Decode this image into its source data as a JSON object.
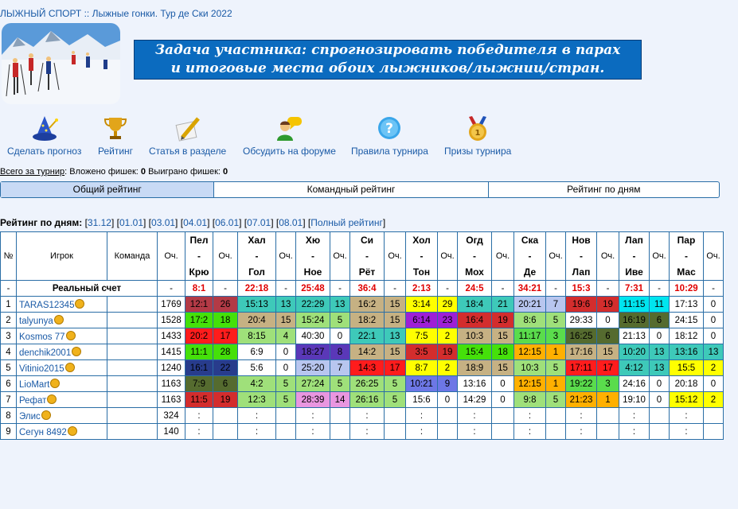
{
  "breadcrumb": {
    "section": "ЛЫЖНЫЙ СПОРТ",
    "sep": "::",
    "page": "Лыжные гонки. Тур де Ски 2022"
  },
  "banner": {
    "line1": "Задача участника: спрогнозировать победителя в парах",
    "line2": "и итоговые места обоих лыжников/лыжниц/стран."
  },
  "toolbar": [
    {
      "label": "Сделать прогноз",
      "icon": "wizard-hat-icon"
    },
    {
      "label": "Рейтинг",
      "icon": "trophy-icon"
    },
    {
      "label": "Статья в разделе",
      "icon": "pencil-note-icon"
    },
    {
      "label": "Обсудить на форуме",
      "icon": "forum-chat-icon"
    },
    {
      "label": "Правила турнира",
      "icon": "help-icon"
    },
    {
      "label": "Призы турнира",
      "icon": "medal-icon"
    }
  ],
  "totals": {
    "label": "Всего за турнир",
    "invested_label": "Вложено фишек:",
    "invested": "0",
    "won_label": "Выиграно фишек:",
    "won": "0"
  },
  "tabs": [
    "Общий рейтинг",
    "Командный рейтинг",
    "Рейтинг по дням"
  ],
  "days": {
    "label": "Рейтинг по дням:",
    "items": [
      "31.12",
      "01.01",
      "03.01",
      "04.01",
      "06.01",
      "07.01",
      "08.01"
    ],
    "full": "Полный рейтинг"
  },
  "table": {
    "headers": {
      "num": "№",
      "player": "Игрок",
      "team": "Команда",
      "points": "Оч.",
      "pts": "Оч."
    },
    "pairs": [
      [
        "Пел",
        "-",
        "Крю"
      ],
      [
        "Хал",
        "-",
        "Гол"
      ],
      [
        "Хю",
        "-",
        "Ное"
      ],
      [
        "Си",
        "-",
        "Рёт"
      ],
      [
        "Хол",
        "-",
        "Тон"
      ],
      [
        "Огд",
        "-",
        "Мох"
      ],
      [
        "Ска",
        "-",
        "Де"
      ],
      [
        "Нов",
        "-",
        "Лап"
      ],
      [
        "Лап",
        "-",
        "Иве"
      ],
      [
        "Пар",
        "-",
        "Мас"
      ]
    ],
    "real": {
      "num": "-",
      "label": "Реальный счет",
      "points": "-",
      "scores": [
        "8:1",
        "22:18",
        "25:48",
        "36:4",
        "2:13",
        "24:5",
        "34:21",
        "15:3",
        "7:31",
        "10:29"
      ],
      "dash": "-"
    },
    "rows": [
      {
        "num": "1",
        "player": "TARAS12345",
        "points": "1769",
        "cells": [
          [
            "12:1",
            "26",
            "c-dred"
          ],
          [
            "15:13",
            "13",
            "c-teal"
          ],
          [
            "22:29",
            "13",
            "c-teal"
          ],
          [
            "16:2",
            "15",
            "c-khaki"
          ],
          [
            "3:14",
            "29",
            "c-yellow"
          ],
          [
            "18:4",
            "21",
            "c-teal"
          ],
          [
            "20:21",
            "7",
            "c-ltblue"
          ],
          [
            "19:6",
            "19",
            "c-dkred"
          ],
          [
            "11:15",
            "11",
            "c-cyan"
          ],
          [
            "17:13",
            "0",
            ""
          ]
        ]
      },
      {
        "num": "2",
        "player": "talyunya",
        "points": "1528",
        "cells": [
          [
            "17:2",
            "18",
            "c-lime"
          ],
          [
            "20:4",
            "15",
            "c-khaki"
          ],
          [
            "15:24",
            "5",
            "c-green"
          ],
          [
            "18:2",
            "15",
            "c-khaki"
          ],
          [
            "6:14",
            "23",
            "c-purple"
          ],
          [
            "16:4",
            "19",
            "c-dkred"
          ],
          [
            "8:6",
            "5",
            "c-green"
          ],
          [
            "29:33",
            "0",
            ""
          ],
          [
            "16:19",
            "6",
            "c-olive"
          ],
          [
            "24:15",
            "0",
            ""
          ]
        ]
      },
      {
        "num": "3",
        "player": "Kosmos 77",
        "points": "1433",
        "cells": [
          [
            "20:2",
            "17",
            "c-red"
          ],
          [
            "8:15",
            "4",
            "c-green"
          ],
          [
            "40:30",
            "0",
            ""
          ],
          [
            "22:1",
            "13",
            "c-teal"
          ],
          [
            "7:5",
            "2",
            "c-yellow"
          ],
          [
            "10:3",
            "15",
            "c-khaki"
          ],
          [
            "11:17",
            "3",
            "c-green2"
          ],
          [
            "16:25",
            "6",
            "c-olive"
          ],
          [
            "21:13",
            "0",
            ""
          ],
          [
            "18:12",
            "0",
            ""
          ]
        ]
      },
      {
        "num": "4",
        "player": "denchik2001",
        "points": "1415",
        "cells": [
          [
            "11:1",
            "28",
            "c-lime"
          ],
          [
            "6:9",
            "0",
            ""
          ],
          [
            "18:27",
            "8",
            "c-violet"
          ],
          [
            "14:2",
            "15",
            "c-khaki"
          ],
          [
            "3:5",
            "19",
            "c-dkred"
          ],
          [
            "15:4",
            "18",
            "c-lime"
          ],
          [
            "12:15",
            "1",
            "c-orange"
          ],
          [
            "17:16",
            "15",
            "c-khaki"
          ],
          [
            "10:20",
            "13",
            "c-teal"
          ],
          [
            "13:16",
            "13",
            "c-teal"
          ]
        ]
      },
      {
        "num": "5",
        "player": "Vitinio2015",
        "points": "1240",
        "cells": [
          [
            "16:1",
            "22",
            "c-navy"
          ],
          [
            "5:6",
            "0",
            ""
          ],
          [
            "25:20",
            "7",
            "c-ltblue"
          ],
          [
            "14:3",
            "17",
            "c-red"
          ],
          [
            "8:7",
            "2",
            "c-yellow"
          ],
          [
            "18:9",
            "15",
            "c-khaki"
          ],
          [
            "10:3",
            "5",
            "c-green"
          ],
          [
            "17:11",
            "17",
            "c-red"
          ],
          [
            "4:12",
            "13",
            "c-teal"
          ],
          [
            "15:5",
            "2",
            "c-yellow"
          ]
        ]
      },
      {
        "num": "6",
        "player": "LioMart",
        "points": "1163",
        "cells": [
          [
            "7:9",
            "6",
            "c-olive"
          ],
          [
            "4:2",
            "5",
            "c-green"
          ],
          [
            "27:24",
            "5",
            "c-green"
          ],
          [
            "26:25",
            "5",
            "c-green"
          ],
          [
            "10:21",
            "9",
            "c-blue"
          ],
          [
            "13:16",
            "0",
            ""
          ],
          [
            "12:15",
            "1",
            "c-orange"
          ],
          [
            "19:22",
            "3",
            "c-green2"
          ],
          [
            "24:16",
            "0",
            ""
          ],
          [
            "20:18",
            "0",
            ""
          ]
        ]
      },
      {
        "num": "7",
        "player": "Рефат",
        "points": "1163",
        "cells": [
          [
            "11:5",
            "19",
            "c-dkred"
          ],
          [
            "12:3",
            "5",
            "c-green"
          ],
          [
            "28:39",
            "14",
            "c-pink"
          ],
          [
            "26:16",
            "5",
            "c-green"
          ],
          [
            "15:6",
            "0",
            ""
          ],
          [
            "14:29",
            "0",
            ""
          ],
          [
            "9:8",
            "5",
            "c-green"
          ],
          [
            "21:23",
            "1",
            "c-orange"
          ],
          [
            "19:10",
            "0",
            ""
          ],
          [
            "15:12",
            "2",
            "c-yellow"
          ]
        ]
      },
      {
        "num": "8",
        "player": "Элис",
        "points": "324",
        "cells": [
          [
            ":",
            "",
            ""
          ],
          [
            ":",
            "",
            ""
          ],
          [
            ":",
            "",
            ""
          ],
          [
            ":",
            "",
            ""
          ],
          [
            ":",
            "",
            ""
          ],
          [
            ":",
            "",
            ""
          ],
          [
            ":",
            "",
            ""
          ],
          [
            ":",
            "",
            ""
          ],
          [
            ":",
            "",
            ""
          ],
          [
            ":",
            "",
            ""
          ]
        ]
      },
      {
        "num": "9",
        "player": "Сегун 8492",
        "points": "140",
        "cells": [
          [
            ":",
            "",
            ""
          ],
          [
            ":",
            "",
            ""
          ],
          [
            ":",
            "",
            ""
          ],
          [
            ":",
            "",
            ""
          ],
          [
            ":",
            "",
            ""
          ],
          [
            ":",
            "",
            ""
          ],
          [
            ":",
            "",
            ""
          ],
          [
            ":",
            "",
            ""
          ],
          [
            ":",
            "",
            ""
          ],
          [
            ":",
            "",
            ""
          ]
        ]
      }
    ]
  }
}
